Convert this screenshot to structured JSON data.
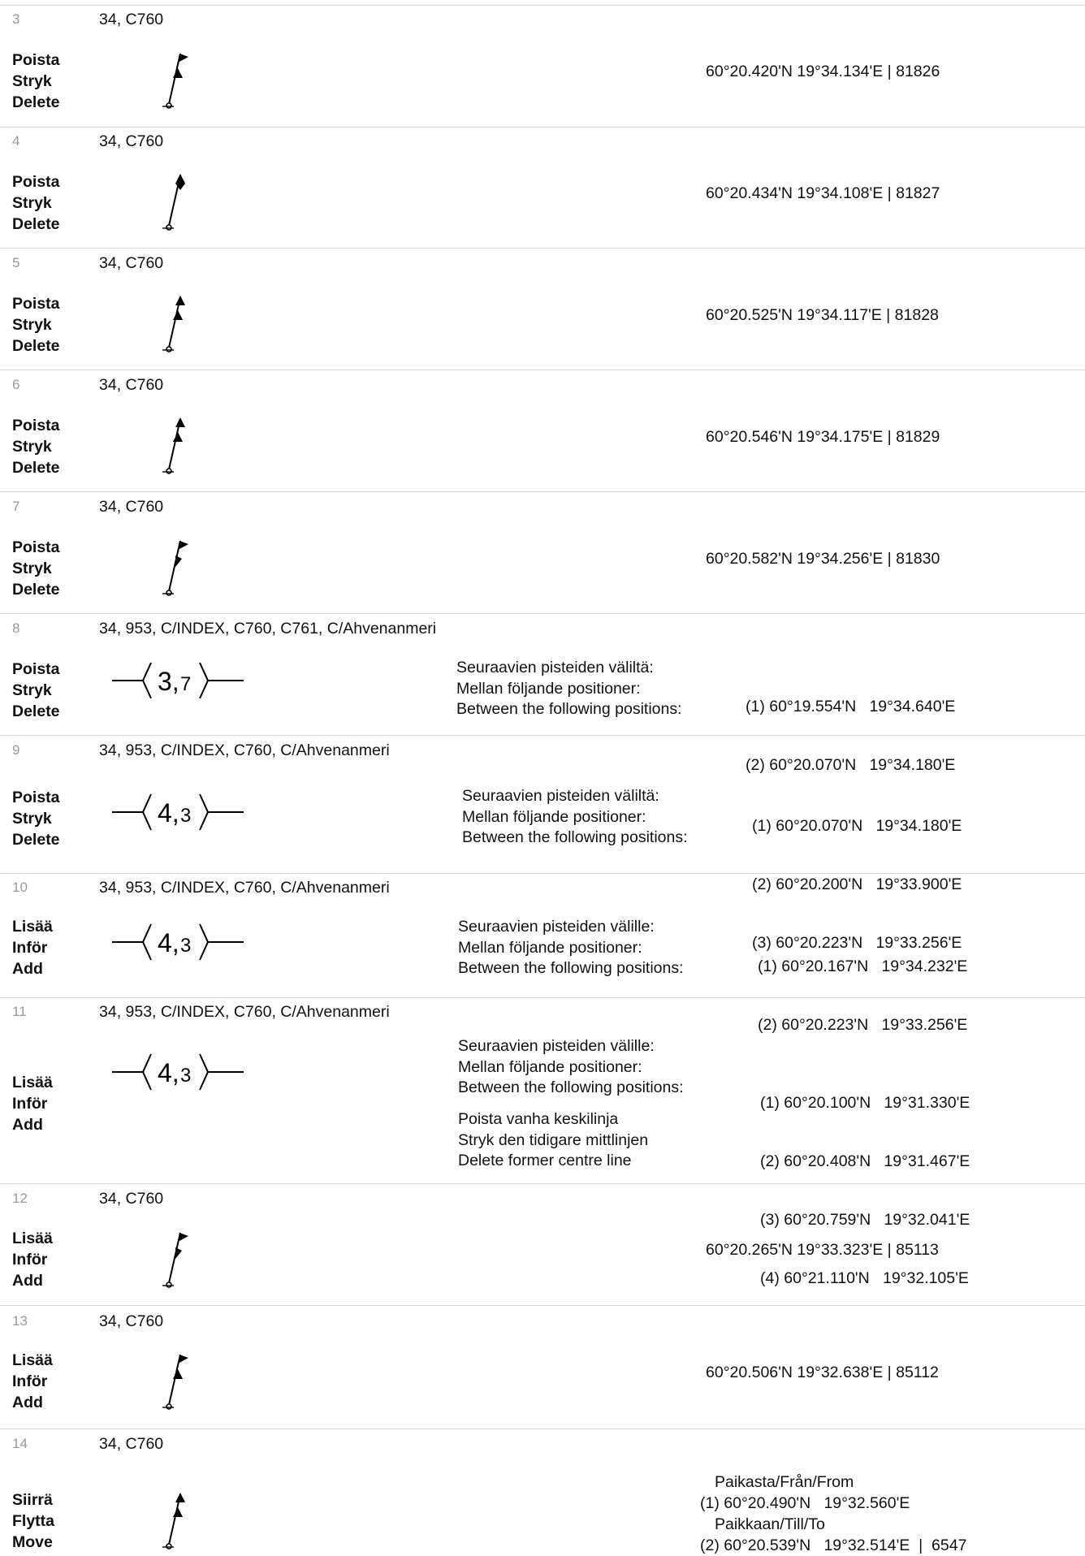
{
  "rows": [
    {
      "num": "3",
      "charts": "34, C760",
      "action": [
        "Poista",
        "Stryk",
        "Delete"
      ],
      "position": "60°20.420'N   19°34.134'E  |  81826"
    },
    {
      "num": "4",
      "charts": "34, C760",
      "action": [
        "Poista",
        "Stryk",
        "Delete"
      ],
      "position": "60°20.434'N   19°34.108'E  |  81827"
    },
    {
      "num": "5",
      "charts": "34, C760",
      "action": [
        "Poista",
        "Stryk",
        "Delete"
      ],
      "position": "60°20.525'N   19°34.117'E  |  81828"
    },
    {
      "num": "6",
      "charts": "34, C760",
      "action": [
        "Poista",
        "Stryk",
        "Delete"
      ],
      "position": "60°20.546'N   19°34.175'E  |  81829"
    },
    {
      "num": "7",
      "charts": "34, C760",
      "action": [
        "Poista",
        "Stryk",
        "Delete"
      ],
      "position": "60°20.582'N   19°34.256'E  |  81830"
    },
    {
      "num": "8",
      "charts": "34, 953, C/INDEX, C760, C761, C/Ahvenanmeri",
      "action": [
        "Poista",
        "Stryk",
        "Delete"
      ],
      "symbol_label": [
        "3,",
        "7"
      ],
      "text": [
        "Seuraavien pisteiden väliltä:",
        "Mellan följande positioner:",
        "Between the following positions:"
      ],
      "points": [
        "(1) 60°19.554'N   19°34.640'E",
        "(2) 60°20.070'N   19°34.180'E"
      ]
    },
    {
      "num": "9",
      "charts": "34, 953, C/INDEX, C760, C/Ahvenanmeri",
      "action": [
        "Poista",
        "Stryk",
        "Delete"
      ],
      "symbol_label": [
        "4,",
        "3"
      ],
      "text": [
        "Seuraavien pisteiden väliltä:",
        "Mellan följande positioner:",
        "Between the following positions:"
      ],
      "points": [
        "(1) 60°20.070'N   19°34.180'E",
        "(2) 60°20.200'N   19°33.900'E",
        "(3) 60°20.223'N   19°33.256'E"
      ]
    },
    {
      "num": "10",
      "charts": "34, 953, C/INDEX, C760, C/Ahvenanmeri",
      "action": [
        "Lisää",
        "Inför",
        "Add"
      ],
      "symbol_label": [
        "4,",
        "3"
      ],
      "text": [
        "Seuraavien pisteiden välille:",
        "Mellan följande positioner:",
        "Between the following positions:"
      ],
      "points": [
        "(1) 60°20.167'N   19°34.232'E",
        "(2) 60°20.223'N   19°33.256'E"
      ]
    },
    {
      "num": "11",
      "charts": "34, 953, C/INDEX, C760, C/Ahvenanmeri",
      "action": [
        "Lisää",
        "Inför",
        "Add"
      ],
      "symbol_label": [
        "4,",
        "3"
      ],
      "text": [
        "Seuraavien pisteiden välille:",
        "Mellan följande positioner:",
        "Between the following positions:"
      ],
      "note": [
        "Poista vanha keskilinja",
        "Stryk den tidigare mittlinjen",
        "Delete former centre line"
      ],
      "points": [
        "(1) 60°20.100'N   19°31.330'E",
        "(2) 60°20.408'N   19°31.467'E",
        "(3) 60°20.759'N   19°32.041'E",
        "(4) 60°21.110'N   19°32.105'E"
      ]
    },
    {
      "num": "12",
      "charts": "34, C760",
      "action": [
        "Lisää",
        "Inför",
        "Add"
      ],
      "position": "60°20.265'N   19°33.323'E  |  85113"
    },
    {
      "num": "13",
      "charts": "34, C760",
      "action": [
        "Lisää",
        "Inför",
        "Add"
      ],
      "position": "60°20.506'N   19°32.638'E  |  85112"
    },
    {
      "num": "14",
      "charts": "34, C760",
      "action": [
        "Siirrä",
        "Flytta",
        "Move"
      ],
      "move": {
        "from_label": "Paikasta/Från/From",
        "from": "(1) 60°20.490'N   19°32.560'E",
        "to_label": "Paikkaan/Till/To",
        "to": "(2) 60°20.539'N   19°32.514'E  |  6547"
      }
    }
  ]
}
